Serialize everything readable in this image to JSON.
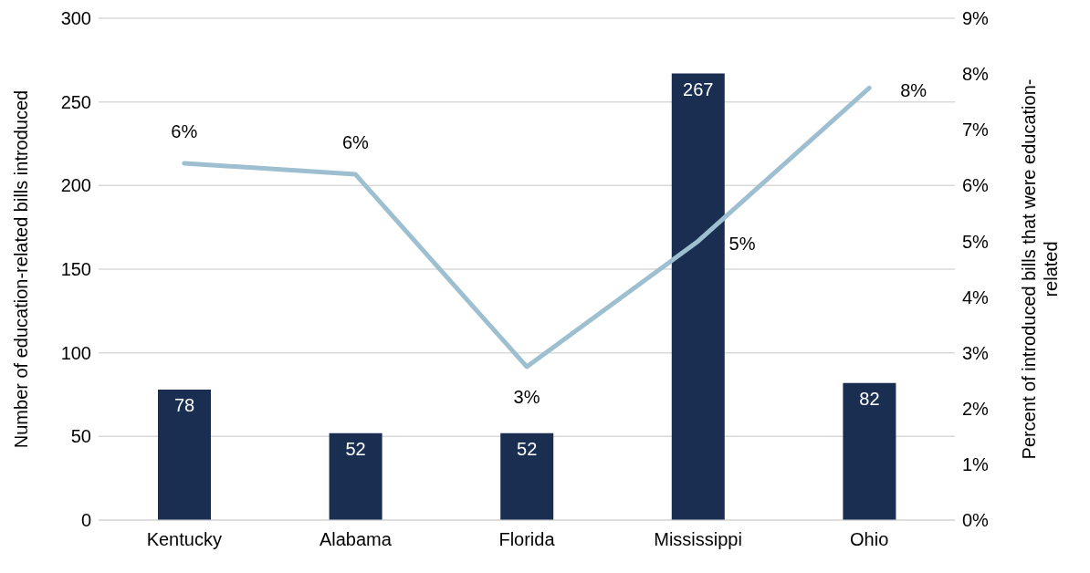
{
  "chart_data": {
    "type": "bar",
    "categories": [
      "Kentucky",
      "Alabama",
      "Florida",
      "Mississippi",
      "Ohio"
    ],
    "ylabel": "Number of education-related bills introduced",
    "y2label": "Percent of introduced bills that were education-related",
    "ylim": [
      0,
      300
    ],
    "yticks": [
      0,
      50,
      100,
      150,
      200,
      250,
      300
    ],
    "y2lim": [
      0,
      9
    ],
    "y2ticks": [
      {
        "value": 0,
        "label": "0%"
      },
      {
        "value": 1,
        "label": "1%"
      },
      {
        "value": 2,
        "label": "2%"
      },
      {
        "value": 3,
        "label": "3%"
      },
      {
        "value": 4,
        "label": "4%"
      },
      {
        "value": 5,
        "label": "5%"
      },
      {
        "value": 6,
        "label": "6%"
      },
      {
        "value": 7,
        "label": "7%"
      },
      {
        "value": 8,
        "label": "8%"
      },
      {
        "value": 9,
        "label": "9%"
      }
    ],
    "series": [
      {
        "color": "#1a2e52",
        "values": [
          78,
          52,
          52,
          267,
          82
        ],
        "data_labels": true
      },
      {
        "type": "line",
        "axis": "y2",
        "color": "#9dbfd0",
        "values": [
          6.4,
          6.2,
          2.75,
          5.0,
          7.75
        ],
        "value_labels": [
          "6%",
          "6%",
          "3%",
          "5%",
          "8%"
        ]
      }
    ],
    "grid": "y",
    "legend": false,
    "marker": "none",
    "line_style": "solid"
  }
}
